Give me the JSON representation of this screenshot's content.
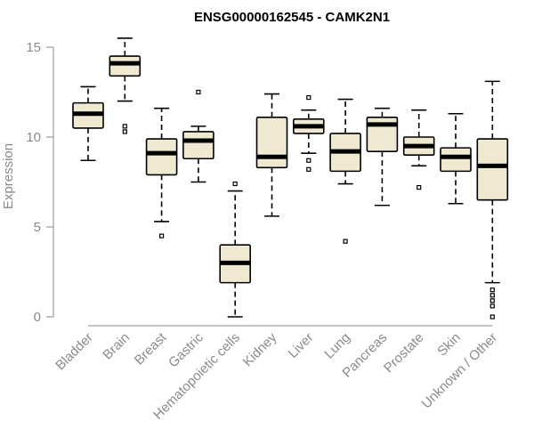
{
  "chart_data": {
    "type": "boxplot",
    "title": "ENSG00000162545 - CAMK2N1",
    "xlabel": "",
    "ylabel": "Expression",
    "ylim": [
      0,
      15
    ],
    "yticks": [
      0,
      5,
      10,
      15
    ],
    "box_fill": "#efe9d2",
    "line_color": "#000000",
    "axis_color": "#8a8a8a",
    "categories": [
      "Bladder",
      "Brain",
      "Breast",
      "Gastric",
      "Hematopoietic cells",
      "Kidney",
      "Liver",
      "Lung",
      "Pancreas",
      "Prostate",
      "Skin",
      "Unknown / Other"
    ],
    "boxes": [
      {
        "label": "Bladder",
        "whisker_low": 8.7,
        "q1": 10.5,
        "median": 11.3,
        "q3": 11.9,
        "whisker_high": 12.8,
        "outliers": []
      },
      {
        "label": "Brain",
        "whisker_low": 12.0,
        "q1": 13.4,
        "median": 14.1,
        "q3": 14.5,
        "whisker_high": 15.5,
        "outliers": [
          10.3,
          10.6
        ]
      },
      {
        "label": "Breast",
        "whisker_low": 5.3,
        "q1": 7.9,
        "median": 9.1,
        "q3": 9.9,
        "whisker_high": 11.6,
        "outliers": [
          4.5
        ]
      },
      {
        "label": "Gastric",
        "whisker_low": 7.5,
        "q1": 8.8,
        "median": 9.8,
        "q3": 10.3,
        "whisker_high": 10.6,
        "outliers": [
          12.5
        ]
      },
      {
        "label": "Hematopoietic cells",
        "whisker_low": 0.0,
        "q1": 1.9,
        "median": 3.0,
        "q3": 4.0,
        "whisker_high": 7.0,
        "outliers": [
          7.4
        ]
      },
      {
        "label": "Kidney",
        "whisker_low": 5.6,
        "q1": 8.3,
        "median": 8.9,
        "q3": 11.1,
        "whisker_high": 12.4,
        "outliers": []
      },
      {
        "label": "Liver",
        "whisker_low": 9.1,
        "q1": 10.2,
        "median": 10.6,
        "q3": 11.0,
        "whisker_high": 11.5,
        "outliers": [
          12.2,
          8.7,
          8.2
        ]
      },
      {
        "label": "Lung",
        "whisker_low": 7.4,
        "q1": 8.1,
        "median": 9.2,
        "q3": 10.2,
        "whisker_high": 12.1,
        "outliers": [
          4.2
        ]
      },
      {
        "label": "Pancreas",
        "whisker_low": 6.2,
        "q1": 9.2,
        "median": 10.7,
        "q3": 11.1,
        "whisker_high": 11.6,
        "outliers": []
      },
      {
        "label": "Prostate",
        "whisker_low": 8.4,
        "q1": 9.0,
        "median": 9.5,
        "q3": 10.0,
        "whisker_high": 11.5,
        "outliers": [
          7.2
        ]
      },
      {
        "label": "Skin",
        "whisker_low": 6.3,
        "q1": 8.1,
        "median": 8.9,
        "q3": 9.4,
        "whisker_high": 11.3,
        "outliers": []
      },
      {
        "label": "Unknown / Other",
        "whisker_low": 1.9,
        "q1": 6.5,
        "median": 8.4,
        "q3": 9.9,
        "whisker_high": 13.1,
        "outliers": [
          1.5,
          1.2,
          0.9,
          0.6,
          0.0
        ]
      }
    ]
  }
}
